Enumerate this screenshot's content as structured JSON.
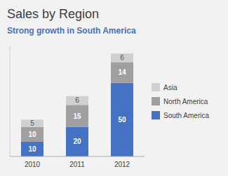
{
  "chart_data": {
    "type": "bar",
    "stacked": true,
    "title": "Sales by Region",
    "subtitle": "Strong growth in South America",
    "categories": [
      "2010",
      "2011",
      "2012"
    ],
    "series": [
      {
        "name": "South America",
        "color": "#4472C4",
        "values": [
          10,
          20,
          50
        ]
      },
      {
        "name": "North America",
        "color": "#A0A0A0",
        "values": [
          10,
          15,
          14
        ]
      },
      {
        "name": "Asia",
        "color": "#D0D0D0",
        "values": [
          5,
          6,
          6
        ]
      }
    ],
    "ylim": [
      0,
      75
    ],
    "yticks": [],
    "grid": false,
    "legend": "right",
    "data_labels": true,
    "tick_labels": "x"
  }
}
